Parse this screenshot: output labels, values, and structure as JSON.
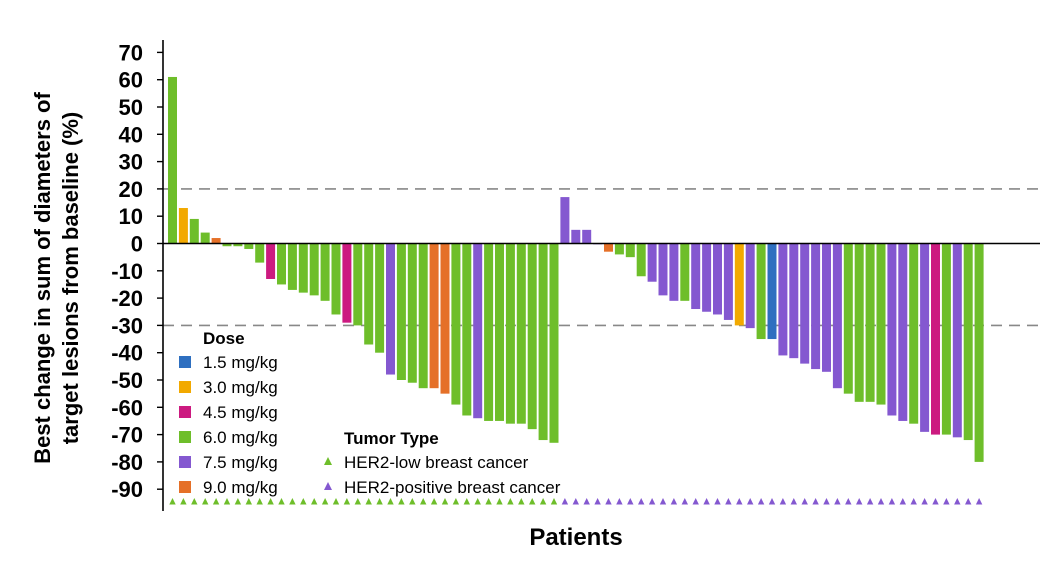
{
  "chart_data": {
    "type": "bar",
    "ylabel_line1": "Best change in sum of diameters of",
    "ylabel_line2": "target lesions from baseline  (%)",
    "xlabel": "Patients",
    "ylim": [
      -98,
      72
    ],
    "yticks": [
      70,
      60,
      50,
      40,
      30,
      20,
      10,
      0,
      -10,
      -20,
      -30,
      -40,
      -50,
      -60,
      -70,
      -80,
      -90
    ],
    "ytick_labels": [
      "70",
      "60",
      "50",
      "40",
      "30",
      "20",
      "10",
      "0",
      "-10",
      "-20",
      "-30",
      "-40",
      "-50",
      "-60",
      "-70",
      "-80",
      "-90"
    ],
    "reference_lines": [
      20,
      -30
    ],
    "legend_dose": {
      "title": "Dose",
      "items": [
        {
          "key": "d15",
          "label": "1.5 mg/kg",
          "color": "#2e6fc0"
        },
        {
          "key": "d30",
          "label": "3.0 mg/kg",
          "color": "#f2a900"
        },
        {
          "key": "d45",
          "label": "4.5 mg/kg",
          "color": "#cc1a80"
        },
        {
          "key": "d60",
          "label": "6.0 mg/kg",
          "color": "#6ebe2a"
        },
        {
          "key": "d75",
          "label": "7.5 mg/kg",
          "color": "#8458d0"
        },
        {
          "key": "d90",
          "label": "9.0 mg/kg",
          "color": "#e57028"
        }
      ]
    },
    "legend_tumor": {
      "title": "Tumor Type",
      "items": [
        {
          "key": "low",
          "label": "HER2-low breast cancer",
          "color": "#6ebe2a"
        },
        {
          "key": "pos",
          "label": "HER2-positive breast cancer",
          "color": "#8458d0"
        }
      ]
    },
    "series": [
      {
        "tumor": "low",
        "values": [
          61,
          13,
          9,
          4,
          2,
          -1,
          -1,
          -2,
          -7,
          -13,
          -15,
          -17,
          -18,
          -19,
          -21,
          -26,
          -29,
          -30,
          -37,
          -40,
          -48,
          -50,
          -51,
          -53,
          -53,
          -55,
          -59,
          -63,
          -64,
          -65,
          -65,
          -66,
          -66,
          -68,
          -72,
          -73
        ],
        "doses": [
          "d60",
          "d30",
          "d60",
          "d60",
          "d90",
          "d60",
          "d60",
          "d60",
          "d60",
          "d45",
          "d60",
          "d60",
          "d60",
          "d60",
          "d60",
          "d60",
          "d45",
          "d60",
          "d60",
          "d60",
          "d75",
          "d60",
          "d60",
          "d60",
          "d90",
          "d90",
          "d60",
          "d60",
          "d75",
          "d60",
          "d60",
          "d60",
          "d60",
          "d60",
          "d60",
          "d60"
        ]
      },
      {
        "tumor": "pos",
        "values": [
          17,
          5,
          5,
          0,
          -3,
          -4,
          -5,
          -12,
          -14,
          -19,
          -21,
          -21,
          -24,
          -25,
          -26,
          -28,
          -30,
          -31,
          -35,
          -35,
          -41,
          -42,
          -44,
          -46,
          -47,
          -53,
          -55,
          -58,
          -58,
          -59,
          -63,
          -65,
          -66,
          -69,
          -70,
          -70,
          -71,
          -72,
          -80
        ],
        "doses": [
          "d75",
          "d75",
          "d75",
          "d75",
          "d90",
          "d60",
          "d60",
          "d60",
          "d75",
          "d75",
          "d75",
          "d60",
          "d75",
          "d75",
          "d75",
          "d75",
          "d30",
          "d75",
          "d60",
          "d15",
          "d75",
          "d75",
          "d75",
          "d75",
          "d75",
          "d75",
          "d60",
          "d60",
          "d60",
          "d60",
          "d75",
          "d75",
          "d60",
          "d75",
          "d45",
          "d60",
          "d75",
          "d60",
          "d60"
        ]
      }
    ]
  }
}
